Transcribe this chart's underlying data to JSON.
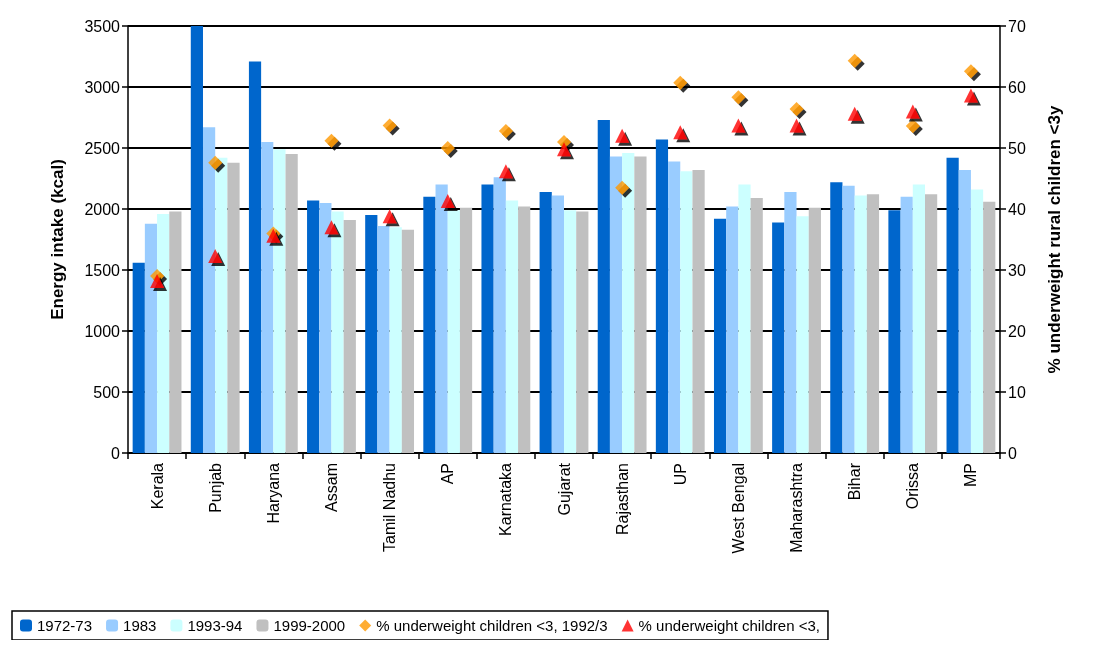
{
  "chart_data": {
    "type": "bar",
    "categories": [
      "Kerala",
      "Punjab",
      "Haryana",
      "Assam",
      "Tamil Nadhu",
      "AP",
      "Karnataka",
      "Gujarat",
      "Rajasthan",
      "UP",
      "West Bengal",
      "Maharashtra",
      "Bihar",
      "Orissa",
      "MP"
    ],
    "series": [
      {
        "name": "1972-73",
        "color": "#0066cc",
        "values": [
          1560,
          3500,
          3210,
          2070,
          1950,
          2100,
          2200,
          2140,
          2730,
          2570,
          1920,
          1890,
          2220,
          1990,
          2420
        ]
      },
      {
        "name": "1983",
        "color": "#99ccff",
        "values": [
          1880,
          2670,
          2550,
          2050,
          1860,
          2200,
          2260,
          2110,
          2430,
          2390,
          2020,
          2140,
          2190,
          2100,
          2320
        ]
      },
      {
        "name": "1993-94",
        "color": "#ccffff",
        "values": [
          1960,
          2420,
          2490,
          1980,
          1850,
          1990,
          2070,
          1990,
          2460,
          2310,
          2200,
          1940,
          2110,
          2200,
          2160
        ]
      },
      {
        "name": "1999-2000",
        "color": "#c0c0c0",
        "values": [
          1980,
          2380,
          2450,
          1910,
          1830,
          2010,
          2020,
          1980,
          2430,
          2320,
          2090,
          2010,
          2120,
          2120,
          2060
        ]
      },
      {
        "name": "% underweight children <3, 1992/3",
        "type": "scatter",
        "axis": "y2",
        "marker": "diamond",
        "color": "#ff9900",
        "x": [
          "Kerala",
          "Punjab",
          "Haryana",
          "Assam",
          "Tamil Nadhu",
          "AP",
          "Karnataka",
          "Gujarat",
          "Rajasthan",
          "UP",
          "West Bengal",
          "Maharashtra",
          "Bihar",
          "Orissa",
          "MP"
        ],
        "values": [
          29,
          47.6,
          36,
          51.2,
          53.7,
          50,
          52.8,
          51,
          43.5,
          60.7,
          58.3,
          56.4,
          64.3,
          53.6,
          62.6
        ]
      },
      {
        "name": "% underweight children <3,",
        "type": "scatter",
        "axis": "y2",
        "marker": "triangle",
        "color": "#ff0000",
        "x": [
          "Kerala",
          "Punjab",
          "Haryana",
          "Assam",
          "Tamil Nadhu",
          "AP",
          "Karnataka",
          "Gujarat",
          "Rajasthan",
          "UP",
          "West Bengal",
          "Maharashtra",
          "Bihar",
          "Orissa",
          "MP"
        ],
        "values": [
          28.2,
          32.3,
          35.6,
          37,
          38.8,
          41.3,
          46.2,
          49.8,
          52,
          52.6,
          53.7,
          53.7,
          55.6,
          56,
          58.6
        ]
      }
    ],
    "ylabel": "Energy intake (kcal)",
    "y2label": "% underweight rural children <3y",
    "ylim": [
      0,
      3500
    ],
    "yticks": [
      0,
      500,
      1000,
      1500,
      2000,
      2500,
      3000,
      3500
    ],
    "y2lim": [
      0,
      70
    ],
    "y2ticks": [
      0,
      10,
      20,
      30,
      40,
      50,
      60,
      70
    ],
    "grid": "y",
    "legend": "bottom"
  }
}
